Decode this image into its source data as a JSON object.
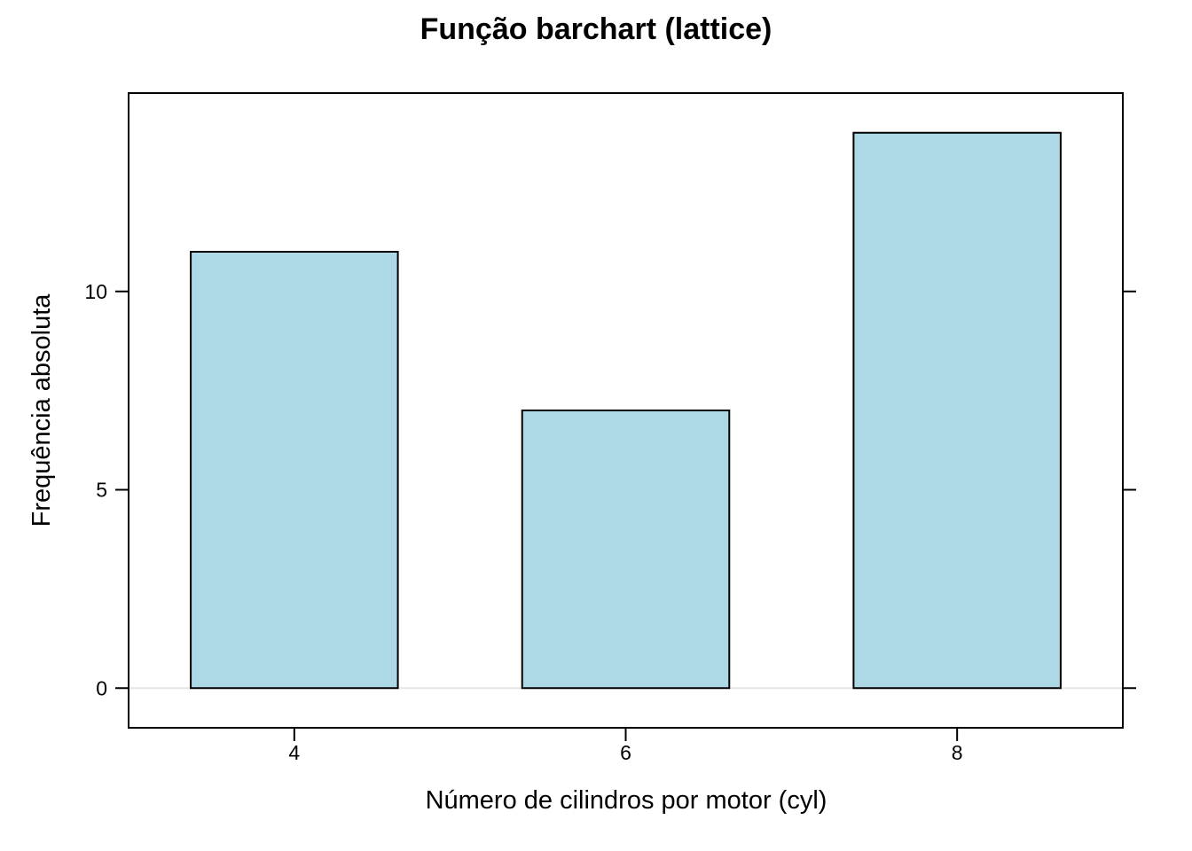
{
  "chart_data": {
    "type": "bar",
    "title": "Função barchart (lattice)",
    "xlabel": "Número de cilindros por motor (cyl)",
    "ylabel": "Frequência absoluta",
    "categories": [
      "4",
      "6",
      "8"
    ],
    "values": [
      11,
      7,
      14
    ],
    "ylim": [
      -1,
      15
    ],
    "yticks": [
      0,
      5,
      10
    ],
    "bar_color": "#ADD8E6",
    "bar_edge_color": "#000000",
    "zero_line_color": "#E6E6E6",
    "grid": false,
    "legend": false
  }
}
